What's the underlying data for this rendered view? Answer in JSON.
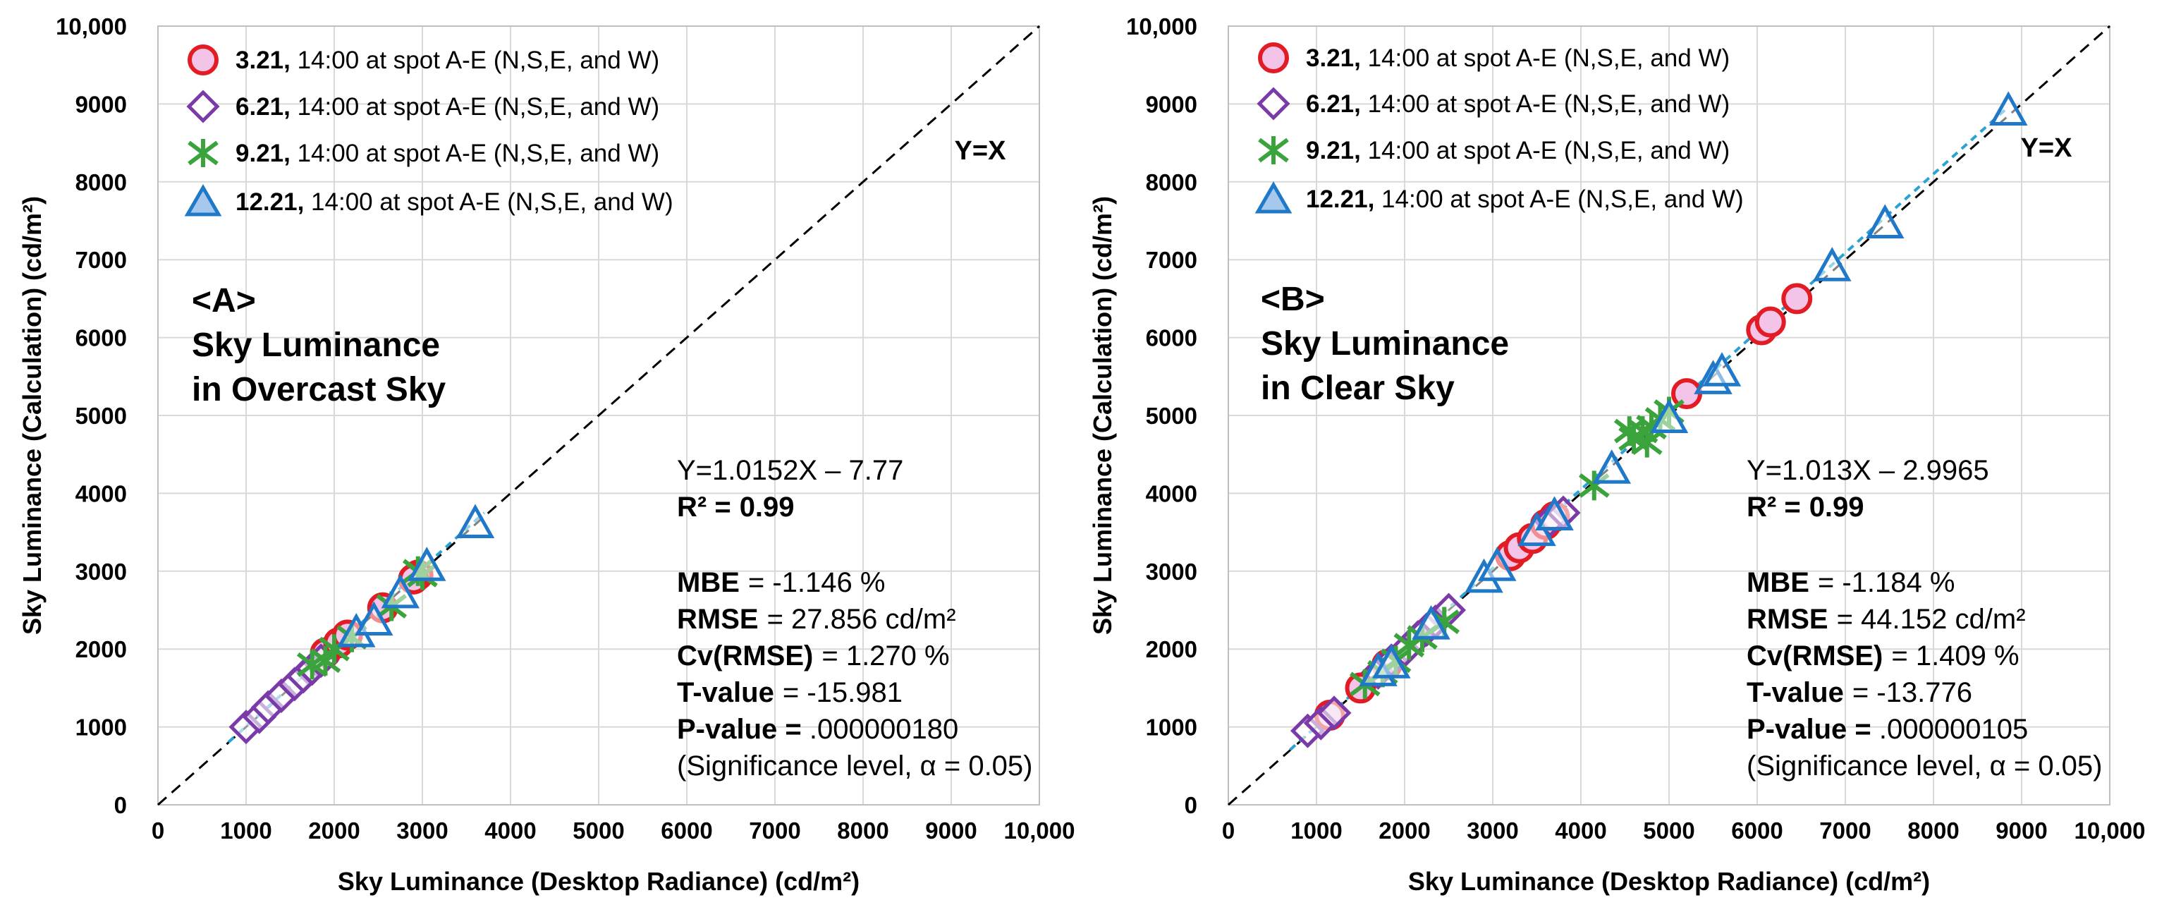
{
  "colors": {
    "circle": "#e21c24",
    "circle_fill": "#f3c3e8",
    "diamond": "#7a3aa8",
    "star": "#3aa33c",
    "triangle": "#1f78c8",
    "reference": "#000000",
    "trend": "#29a3d6",
    "grid": "#d9d9d9"
  },
  "legend": [
    {
      "marker": "circle",
      "date": "3.21,",
      "desc": " 14:00 at spot A-E (N,S,E, and W)"
    },
    {
      "marker": "diamond",
      "date": "6.21,",
      "desc": " 14:00 at spot A-E (N,S,E, and W)"
    },
    {
      "marker": "star",
      "date": "9.21,",
      "desc": " 14:00 at spot A-E (N,S,E, and W)"
    },
    {
      "marker": "triangle",
      "date": "12.21,",
      "desc": " 14:00 at spot A-E (N,S,E, and W)"
    }
  ],
  "chart_data": [
    {
      "type": "scatter",
      "panel_label": "<A>",
      "title_lines": [
        "Sky Luminance",
        "in Overcast Sky"
      ],
      "xlabel": "Sky Luminance (Desktop Radiance) (cd/m²)",
      "ylabel": "Sky Luminance (Calculation) (cd/m²)",
      "xlim": [
        0,
        10000
      ],
      "ylim": [
        0,
        10000
      ],
      "x_ticks": [
        "0",
        "1000",
        "2000",
        "3000",
        "4000",
        "5000",
        "6000",
        "7000",
        "8000",
        "9000",
        "10,000"
      ],
      "y_ticks": [
        "0",
        "1000",
        "2000",
        "3000",
        "4000",
        "5000",
        "6000",
        "7000",
        "8000",
        "9000",
        "10,000"
      ],
      "reference_label": "Y=X",
      "trend": {
        "slope": 1.0152,
        "intercept": -7.77,
        "x_range": [
          800,
          3700
        ]
      },
      "stats": {
        "equation": "Y=1.0152X – 7.77",
        "r2_label": "R² =",
        "r2_value": "0.99",
        "mbe_label": "MBE",
        "mbe_value": "= -1.146 %",
        "rmse_label": "RMSE",
        "rmse_value": "= 27.856 cd/m²",
        "cv_label": "Cv(RMSE)",
        "cv_value": "= 1.270 %",
        "t_label": "T-value",
        "t_value": "= -15.981",
        "p_label": "P-value =",
        "p_value": " .000000180",
        "note": "(Significance level, α = 0.05)"
      },
      "series": [
        {
          "name": "3.21",
          "marker": "circle",
          "points": [
            [
              1900,
              1950
            ],
            [
              2050,
              2080
            ],
            [
              2150,
              2180
            ],
            [
              2550,
              2530
            ],
            [
              2950,
              2950
            ],
            [
              2900,
              2900
            ]
          ]
        },
        {
          "name": "6.21",
          "marker": "diamond",
          "points": [
            [
              1000,
              1000
            ],
            [
              1150,
              1130
            ],
            [
              1250,
              1250
            ],
            [
              1400,
              1400
            ],
            [
              1550,
              1550
            ],
            [
              1650,
              1650
            ],
            [
              1750,
              1750
            ],
            [
              1850,
              1850
            ]
          ]
        },
        {
          "name": "9.21",
          "marker": "star",
          "points": [
            [
              1750,
              1800
            ],
            [
              1900,
              1850
            ],
            [
              2000,
              2000
            ],
            [
              2200,
              2150
            ],
            [
              2650,
              2550
            ],
            [
              2950,
              3000
            ],
            [
              3000,
              2950
            ]
          ]
        },
        {
          "name": "12.21",
          "marker": "triangle",
          "points": [
            [
              2250,
              2200
            ],
            [
              2450,
              2350
            ],
            [
              2750,
              2700
            ],
            [
              3050,
              3050
            ],
            [
              3600,
              3600
            ]
          ]
        }
      ]
    },
    {
      "type": "scatter",
      "panel_label": "<B>",
      "title_lines": [
        "Sky Luminance",
        "in Clear Sky"
      ],
      "xlabel": "Sky Luminance (Desktop Radiance) (cd/m²)",
      "ylabel": "Sky Luminance (Calculation) (cd/m²)",
      "xlim": [
        0,
        10000
      ],
      "ylim": [
        0,
        10000
      ],
      "x_ticks": [
        "0",
        "1000",
        "2000",
        "3000",
        "4000",
        "5000",
        "6000",
        "7000",
        "8000",
        "9000",
        "10,000"
      ],
      "y_ticks": [
        "0",
        "1000",
        "2000",
        "3000",
        "4000",
        "5000",
        "6000",
        "7000",
        "8000",
        "9000",
        "10,000"
      ],
      "reference_label": "Y=X",
      "trend": {
        "slope": 1.013,
        "intercept": -2.9965,
        "x_range": [
          700,
          8850
        ]
      },
      "stats": {
        "equation": "Y=1.013X – 2.9965",
        "r2_label": "R² =",
        "r2_value": "0.99",
        "mbe_label": "MBE",
        "mbe_value": "= -1.184 %",
        "rmse_label": "RMSE",
        "rmse_value": "= 44.152 cd/m²",
        "cv_label": "Cv(RMSE)",
        "cv_value": "= 1.409 %",
        "t_label": "T-value",
        "t_value": "= -13.776",
        "p_label": "P-value =",
        "p_value": " .000000105",
        "note": "(Significance level, α = 0.05)"
      },
      "series": [
        {
          "name": "3.21",
          "marker": "circle",
          "points": [
            [
              1150,
              1150
            ],
            [
              1500,
              1500
            ],
            [
              1800,
              1800
            ],
            [
              3200,
              3200
            ],
            [
              3300,
              3300
            ],
            [
              3450,
              3420
            ],
            [
              3600,
              3600
            ],
            [
              3700,
              3700
            ],
            [
              5200,
              5280
            ],
            [
              6050,
              6100
            ],
            [
              6150,
              6200
            ],
            [
              6450,
              6500
            ]
          ]
        },
        {
          "name": "6.21",
          "marker": "diamond",
          "points": [
            [
              900,
              950
            ],
            [
              1050,
              1050
            ],
            [
              1200,
              1180
            ],
            [
              1700,
              1700
            ],
            [
              1850,
              1850
            ],
            [
              2000,
              1980
            ],
            [
              2150,
              2150
            ],
            [
              2250,
              2250
            ],
            [
              2350,
              2350
            ],
            [
              2500,
              2500
            ],
            [
              3650,
              3650
            ],
            [
              3800,
              3750
            ]
          ]
        },
        {
          "name": "9.21",
          "marker": "star",
          "points": [
            [
              1550,
              1550
            ],
            [
              1750,
              1700
            ],
            [
              1900,
              1850
            ],
            [
              2050,
              2050
            ],
            [
              2200,
              2150
            ],
            [
              2450,
              2350
            ],
            [
              4150,
              4100
            ],
            [
              4600,
              4700
            ],
            [
              4700,
              4800
            ],
            [
              4800,
              4850
            ],
            [
              4900,
              4950
            ],
            [
              5000,
              5050
            ],
            [
              4750,
              4650
            ],
            [
              4550,
              4800
            ]
          ]
        },
        {
          "name": "12.21",
          "marker": "triangle",
          "points": [
            [
              1700,
              1700
            ],
            [
              1850,
              1800
            ],
            [
              2300,
              2300
            ],
            [
              2900,
              2900
            ],
            [
              3050,
              3050
            ],
            [
              3500,
              3500
            ],
            [
              3700,
              3700
            ],
            [
              4350,
              4300
            ],
            [
              5000,
              4950
            ],
            [
              5500,
              5450
            ],
            [
              5600,
              5550
            ],
            [
              6850,
              6900
            ],
            [
              7450,
              7450
            ],
            [
              8850,
              8900
            ]
          ]
        }
      ]
    }
  ]
}
